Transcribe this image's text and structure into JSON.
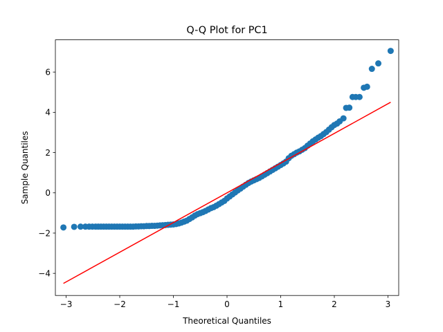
{
  "chart_data": {
    "type": "scatter",
    "title": "Q-Q Plot for PC1",
    "xlabel": "Theoretical Quantiles",
    "ylabel": "Sample Quantiles",
    "xlim": [
      -3.2,
      3.2
    ],
    "ylim": [
      -5.1,
      7.6
    ],
    "xticks": [
      -3,
      -2,
      -1,
      0,
      1,
      2,
      3
    ],
    "xtick_labels": [
      "−3",
      "−2",
      "−1",
      "0",
      "1",
      "2",
      "3"
    ],
    "yticks": [
      -4,
      -2,
      0,
      2,
      4,
      6
    ],
    "ytick_labels": [
      "−4",
      "−2",
      "0",
      "2",
      "4",
      "6"
    ],
    "grid": false,
    "legend": "none",
    "colors": {
      "points": "#1f77b4",
      "reference_line": "#ff0000"
    },
    "series": [
      {
        "kind": "points",
        "points": [
          [
            -3.05,
            -1.72
          ],
          [
            -2.85,
            -1.69
          ],
          [
            -2.73,
            -1.68
          ],
          [
            -2.64,
            -1.68
          ],
          [
            -2.57,
            -1.68
          ],
          [
            -2.51,
            -1.68
          ],
          [
            -2.45,
            -1.68
          ],
          [
            -2.4,
            -1.68
          ],
          [
            -2.35,
            -1.68
          ],
          [
            -2.3,
            -1.68
          ],
          [
            -2.25,
            -1.68
          ],
          [
            -2.2,
            -1.68
          ],
          [
            -2.15,
            -1.68
          ],
          [
            -2.1,
            -1.68
          ],
          [
            -2.05,
            -1.68
          ],
          [
            -2.0,
            -1.68
          ],
          [
            -1.95,
            -1.68
          ],
          [
            -1.9,
            -1.68
          ],
          [
            -1.85,
            -1.68
          ],
          [
            -1.8,
            -1.68
          ],
          [
            -1.75,
            -1.68
          ],
          [
            -1.7,
            -1.67
          ],
          [
            -1.65,
            -1.67
          ],
          [
            -1.6,
            -1.66
          ],
          [
            -1.55,
            -1.66
          ],
          [
            -1.5,
            -1.65
          ],
          [
            -1.45,
            -1.65
          ],
          [
            -1.4,
            -1.64
          ],
          [
            -1.35,
            -1.64
          ],
          [
            -1.3,
            -1.63
          ],
          [
            -1.25,
            -1.62
          ],
          [
            -1.2,
            -1.61
          ],
          [
            -1.15,
            -1.6
          ],
          [
            -1.1,
            -1.59
          ],
          [
            -1.05,
            -1.58
          ],
          [
            -1.0,
            -1.57
          ],
          [
            -0.95,
            -1.55
          ],
          [
            -0.9,
            -1.52
          ],
          [
            -0.85,
            -1.48
          ],
          [
            -0.8,
            -1.43
          ],
          [
            -0.75,
            -1.38
          ],
          [
            -0.7,
            -1.3
          ],
          [
            -0.65,
            -1.22
          ],
          [
            -0.6,
            -1.13
          ],
          [
            -0.55,
            -1.06
          ],
          [
            -0.5,
            -1.01
          ],
          [
            -0.45,
            -0.96
          ],
          [
            -0.4,
            -0.9
          ],
          [
            -0.35,
            -0.83
          ],
          [
            -0.3,
            -0.76
          ],
          [
            -0.25,
            -0.71
          ],
          [
            -0.2,
            -0.64
          ],
          [
            -0.15,
            -0.56
          ],
          [
            -0.1,
            -0.48
          ],
          [
            -0.05,
            -0.4
          ],
          [
            0.0,
            -0.28
          ],
          [
            0.05,
            -0.18
          ],
          [
            0.1,
            -0.08
          ],
          [
            0.15,
            0.02
          ],
          [
            0.2,
            0.12
          ],
          [
            0.25,
            0.21
          ],
          [
            0.3,
            0.31
          ],
          [
            0.35,
            0.4
          ],
          [
            0.4,
            0.49
          ],
          [
            0.45,
            0.56
          ],
          [
            0.5,
            0.62
          ],
          [
            0.55,
            0.68
          ],
          [
            0.6,
            0.74
          ],
          [
            0.65,
            0.82
          ],
          [
            0.7,
            0.9
          ],
          [
            0.75,
            0.98
          ],
          [
            0.8,
            1.06
          ],
          [
            0.85,
            1.14
          ],
          [
            0.9,
            1.22
          ],
          [
            0.95,
            1.3
          ],
          [
            1.0,
            1.38
          ],
          [
            1.05,
            1.46
          ],
          [
            1.1,
            1.55
          ],
          [
            1.15,
            1.72
          ],
          [
            1.2,
            1.84
          ],
          [
            1.25,
            1.92
          ],
          [
            1.3,
            2.0
          ],
          [
            1.35,
            2.06
          ],
          [
            1.4,
            2.14
          ],
          [
            1.45,
            2.22
          ],
          [
            1.5,
            2.34
          ],
          [
            1.55,
            2.45
          ],
          [
            1.6,
            2.56
          ],
          [
            1.65,
            2.65
          ],
          [
            1.7,
            2.74
          ],
          [
            1.75,
            2.82
          ],
          [
            1.8,
            2.92
          ],
          [
            1.85,
            3.02
          ],
          [
            1.9,
            3.14
          ],
          [
            1.95,
            3.26
          ],
          [
            2.0,
            3.37
          ],
          [
            2.05,
            3.44
          ],
          [
            2.1,
            3.55
          ],
          [
            2.17,
            3.7
          ],
          [
            2.22,
            4.22
          ],
          [
            2.28,
            4.23
          ],
          [
            2.34,
            4.76
          ],
          [
            2.4,
            4.76
          ],
          [
            2.47,
            4.76
          ],
          [
            2.55,
            5.22
          ],
          [
            2.61,
            5.27
          ],
          [
            2.7,
            6.16
          ],
          [
            2.82,
            6.43
          ],
          [
            3.05,
            7.05
          ]
        ]
      },
      {
        "kind": "reference-line",
        "x": [
          -3.05,
          3.05
        ],
        "y": [
          -4.5,
          4.5
        ]
      }
    ]
  }
}
